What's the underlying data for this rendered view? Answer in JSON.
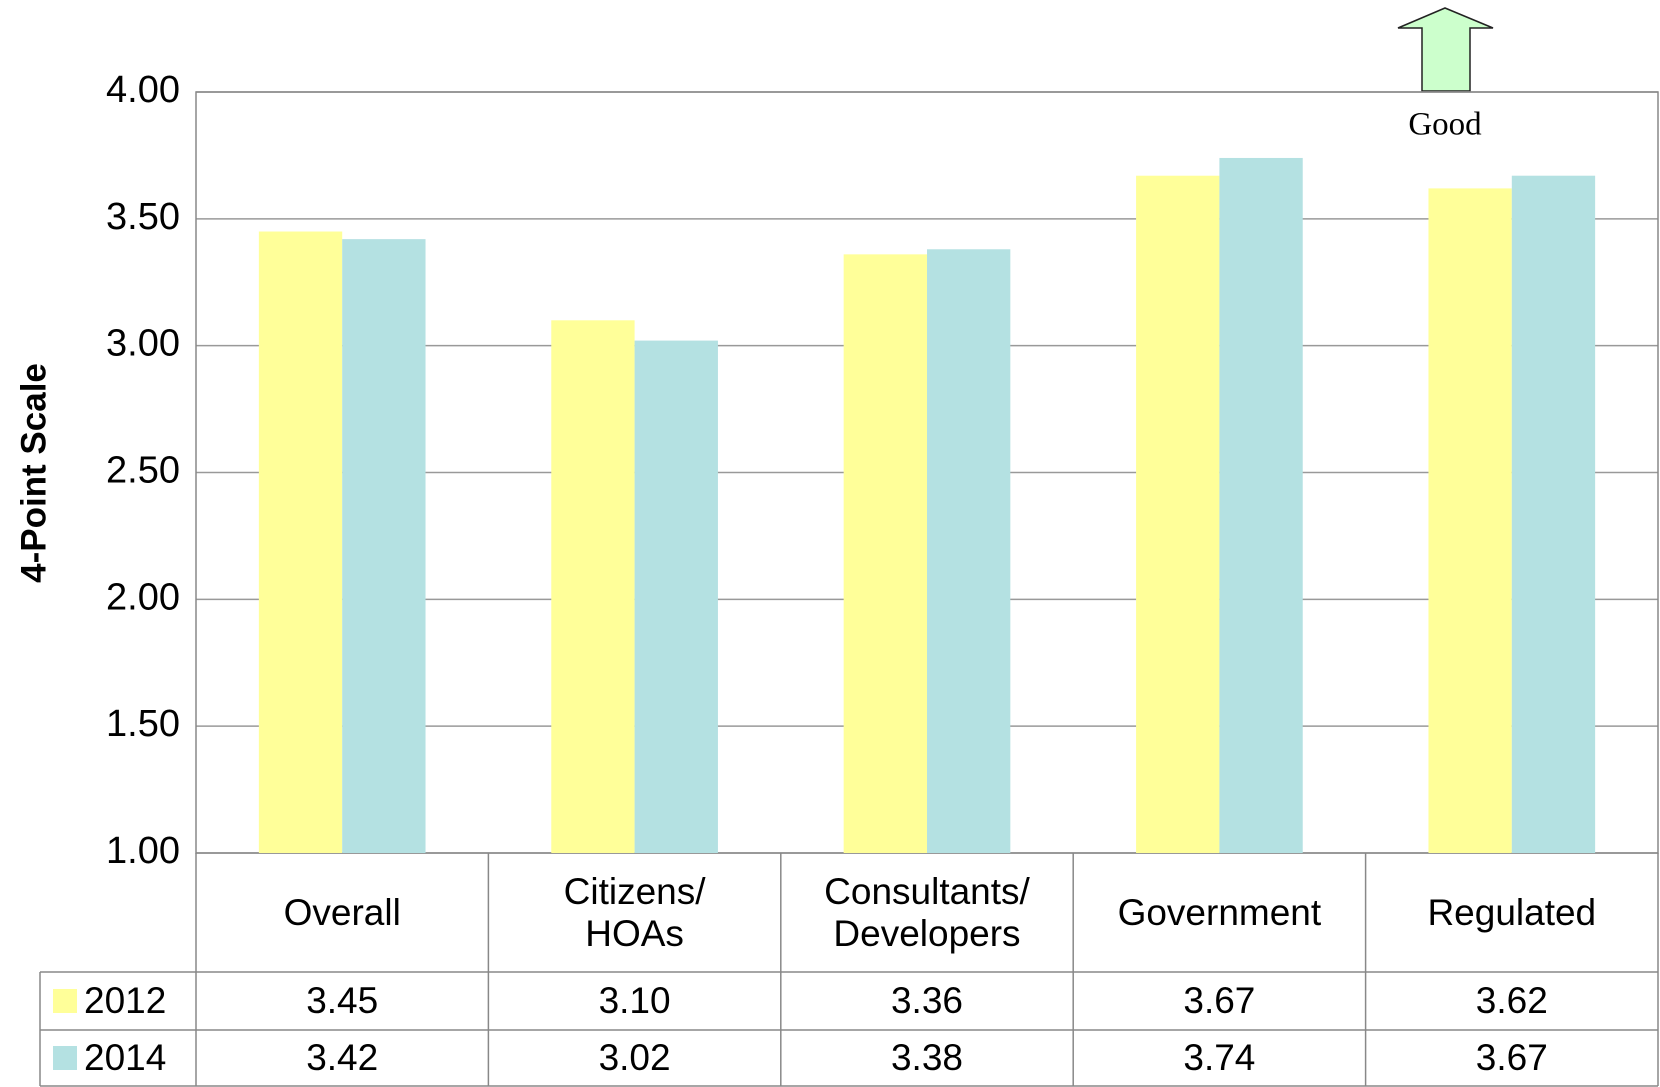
{
  "chart_data": {
    "type": "bar",
    "y_label": "4-Point Scale",
    "annotation": "Good",
    "categories": [
      "Overall",
      "Citizens/\nHOAs",
      "Consultants/\nDevelopers",
      "Government",
      "Regulated"
    ],
    "series": [
      {
        "name": "2012",
        "color": "#ffff99",
        "values": [
          3.45,
          3.1,
          3.36,
          3.67,
          3.62
        ],
        "value_labels": [
          "3.45",
          "3.10",
          "3.36",
          "3.67",
          "3.62"
        ]
      },
      {
        "name": "2014",
        "color": "#b4e1e2",
        "values": [
          3.42,
          3.02,
          3.38,
          3.74,
          3.67
        ],
        "value_labels": [
          "3.42",
          "3.02",
          "3.38",
          "3.74",
          "3.67"
        ]
      }
    ],
    "ylim": [
      1,
      4
    ],
    "yticks": [
      {
        "value": 1,
        "label": "1.00"
      },
      {
        "value": 1.5,
        "label": "1.50"
      },
      {
        "value": 2,
        "label": "2.00"
      },
      {
        "value": 2.5,
        "label": "2.50"
      },
      {
        "value": 3,
        "label": "3.00"
      },
      {
        "value": 3.5,
        "label": "3.50"
      },
      {
        "value": 4,
        "label": "4.00"
      }
    ],
    "grid": true
  }
}
